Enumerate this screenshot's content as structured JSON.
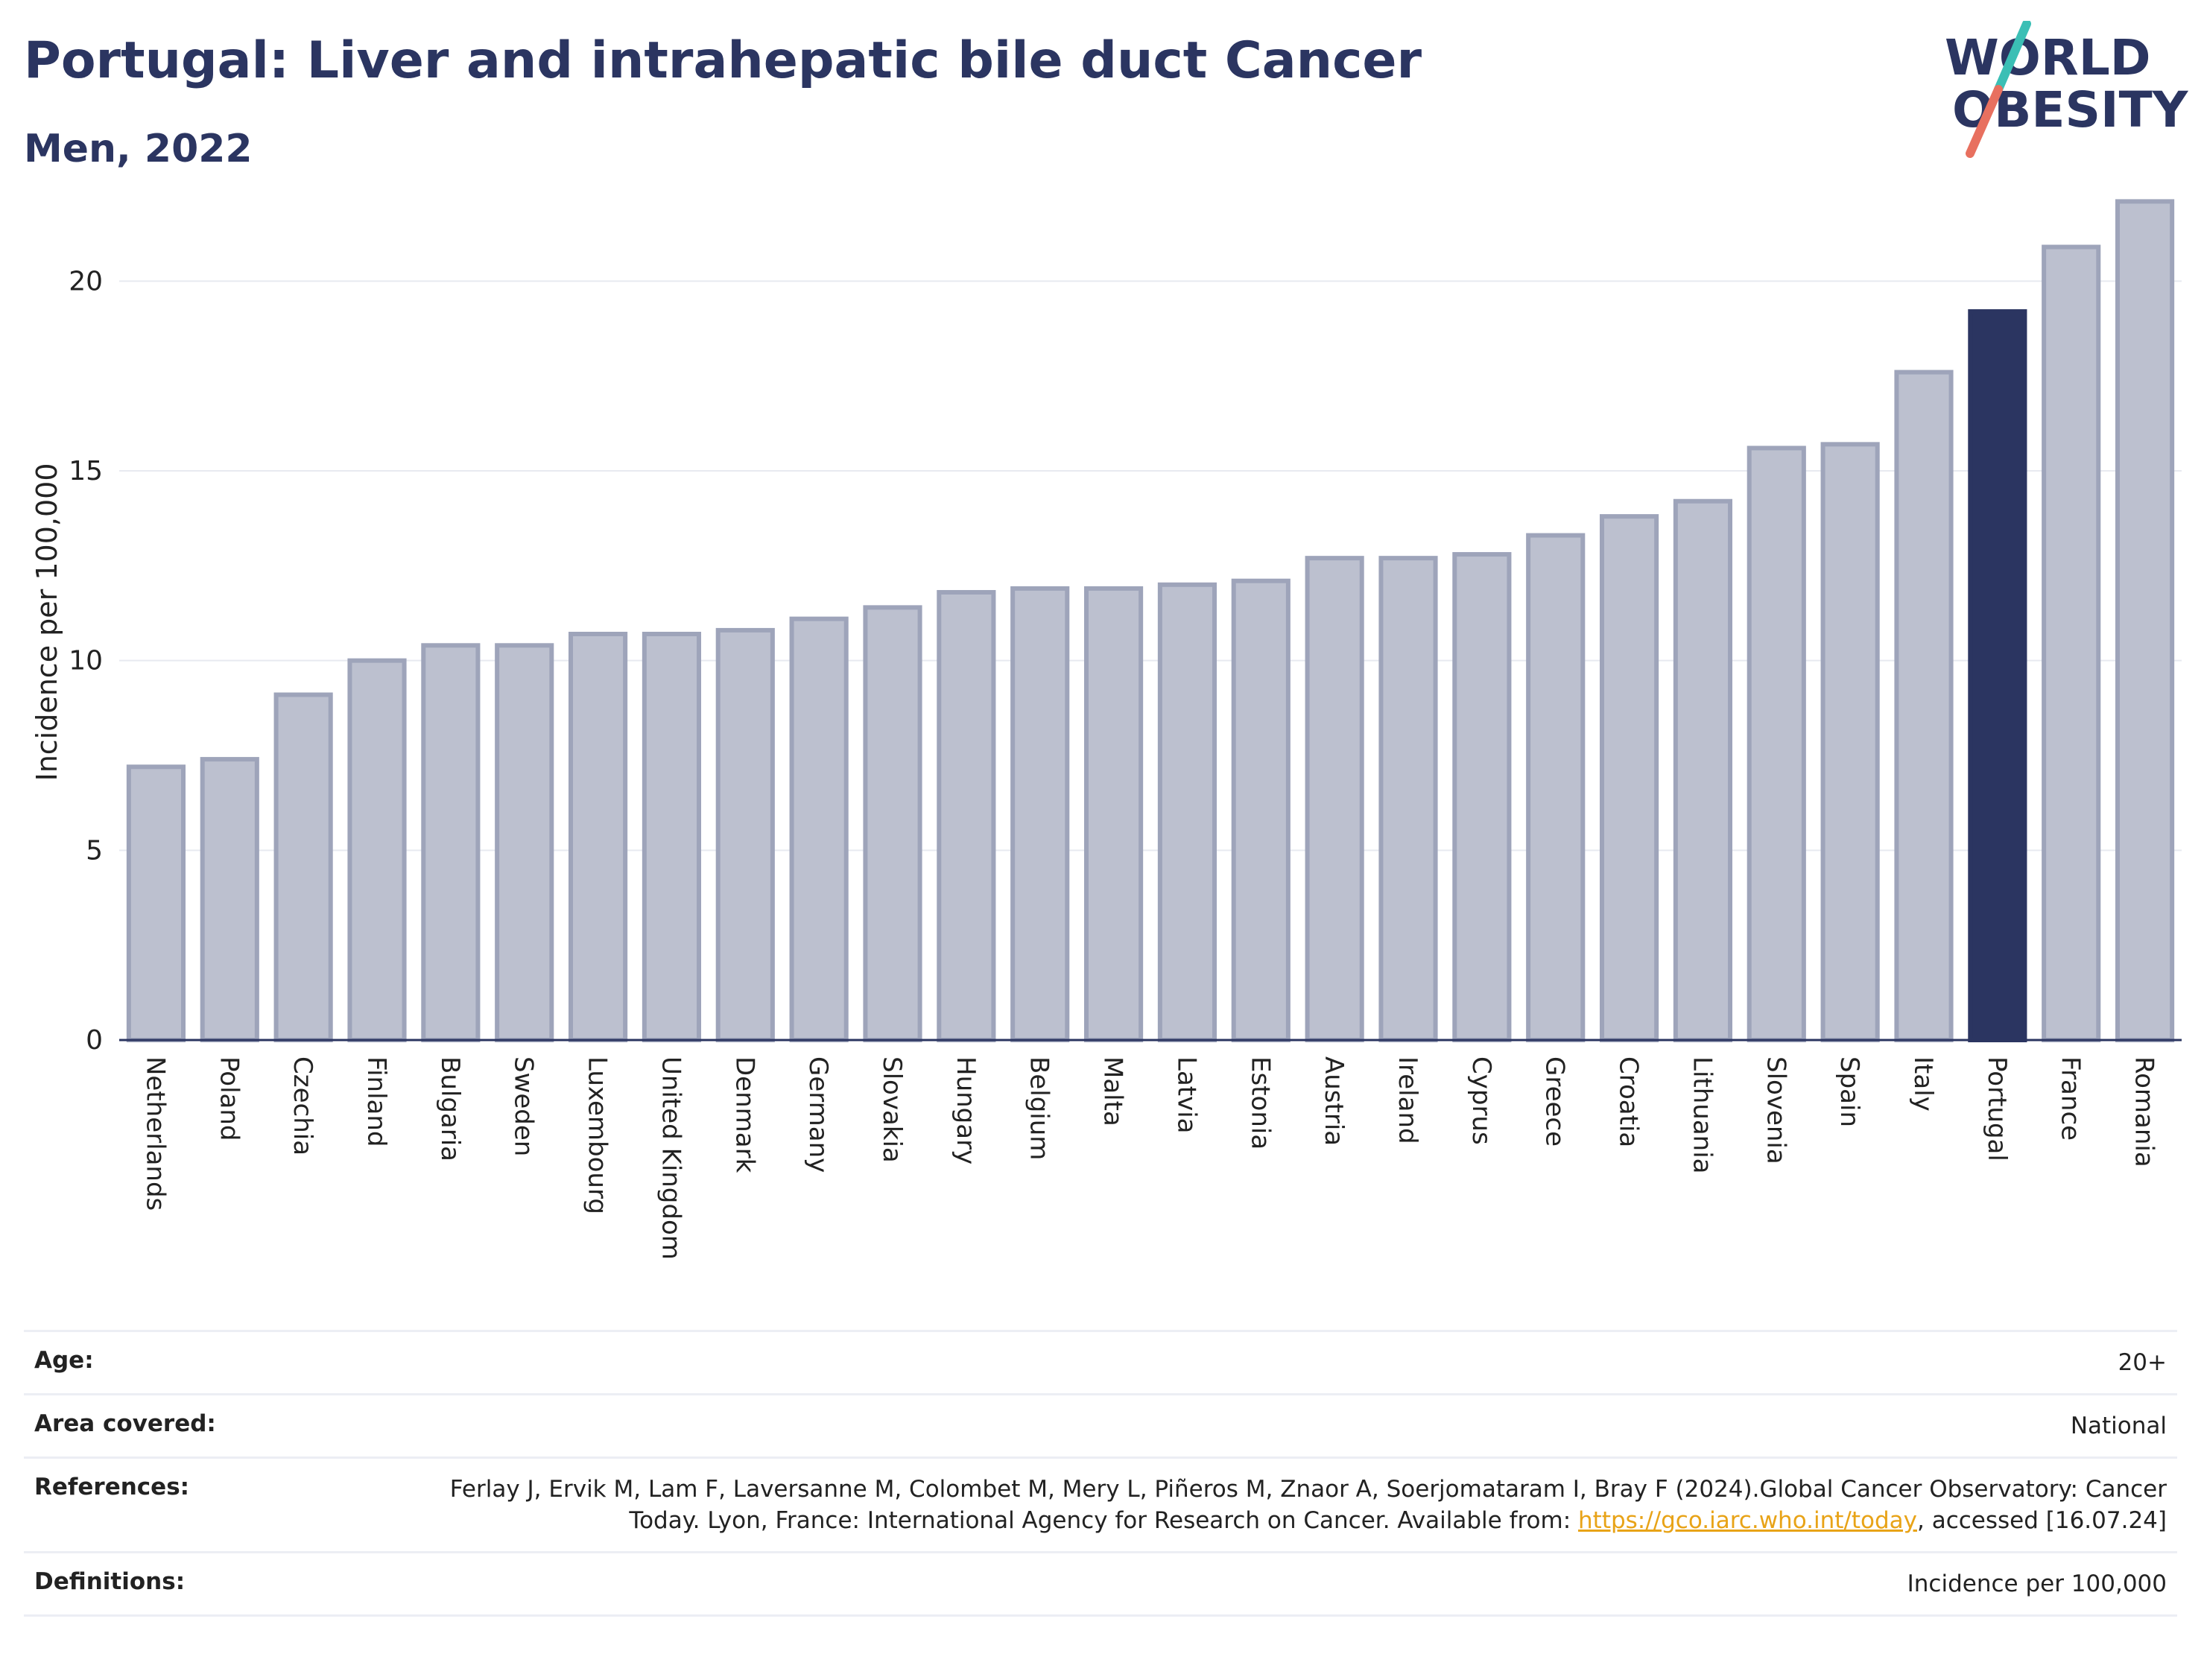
{
  "header": {
    "title": "Portugal: Liver and intrahepatic bile duct Cancer",
    "subtitle": "Men, 2022"
  },
  "logo": {
    "line1": "WORLD",
    "line2": "OBESITY",
    "colors": {
      "text": "#2b3561",
      "slash_top": "#3bbfb5",
      "slash_bottom": "#e8705f"
    }
  },
  "colors": {
    "bar_fill": "#bcc0cf",
    "bar_stroke": "#9ea4ba",
    "highlight": "#2b3561",
    "grid": "#e8eaf0",
    "axis": "#2b3561"
  },
  "chart_data": {
    "type": "bar",
    "title": "Portugal: Liver and intrahepatic bile duct Cancer",
    "subtitle": "Men, 2022",
    "xlabel": "",
    "ylabel": "Incidence per 100,000",
    "ylim": [
      0,
      22.5
    ],
    "yticks": [
      0,
      5,
      10,
      15,
      20
    ],
    "grid": true,
    "highlight": "Portugal",
    "categories": [
      "Netherlands",
      "Poland",
      "Czechia",
      "Finland",
      "Bulgaria",
      "Sweden",
      "Luxembourg",
      "United Kingdom",
      "Denmark",
      "Germany",
      "Slovakia",
      "Hungary",
      "Belgium",
      "Malta",
      "Latvia",
      "Estonia",
      "Austria",
      "Ireland",
      "Cyprus",
      "Greece",
      "Croatia",
      "Lithuania",
      "Slovenia",
      "Spain",
      "Italy",
      "Portugal",
      "France",
      "Romania"
    ],
    "values": [
      7.2,
      7.4,
      9.1,
      10.0,
      10.4,
      10.4,
      10.7,
      10.7,
      10.8,
      11.1,
      11.4,
      11.8,
      11.9,
      11.9,
      12.0,
      12.1,
      12.7,
      12.7,
      12.8,
      13.3,
      13.8,
      14.2,
      15.6,
      15.7,
      17.6,
      19.2,
      20.9,
      22.1
    ]
  },
  "meta": {
    "age_label": "Age:",
    "age_value": "20+",
    "area_label": "Area covered:",
    "area_value": "National",
    "ref_label": "References:",
    "ref_text_before": "Ferlay J, Ervik M, Lam F, Laversanne M, Colombet M, Mery L, Piñeros M, Znaor A, Soerjomataram I, Bray F (2024).Global Cancer Observatory: Cancer Today. Lyon, France: International Agency for Research on Cancer. Available from: ",
    "ref_link": "https://gco.iarc.who.int/today",
    "ref_text_after": ", accessed [16.07.24]",
    "def_label": "Definitions:",
    "def_value": "Incidence per 100,000"
  }
}
